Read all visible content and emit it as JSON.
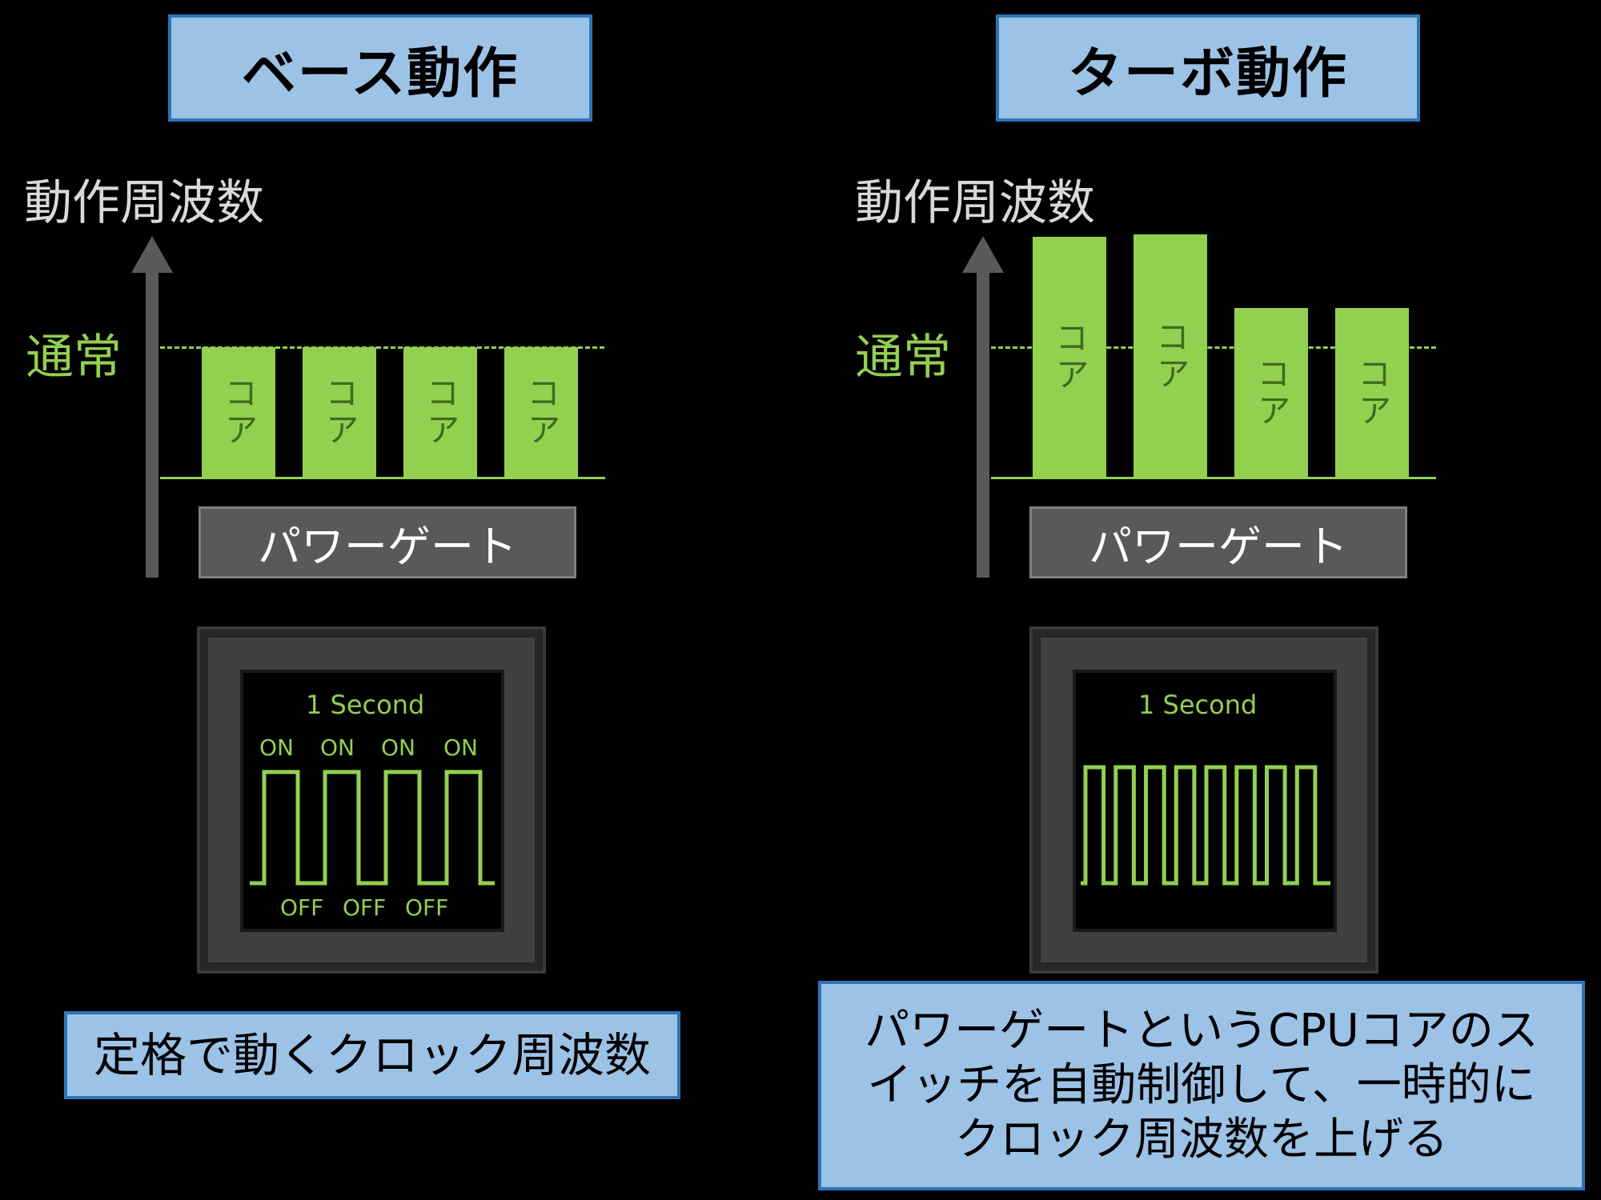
{
  "left": {
    "title": "ベース動作",
    "axis_label": "動作周波数",
    "normal_label": "通常",
    "cores": [
      {
        "label": "コア",
        "level": 1.0
      },
      {
        "label": "コア",
        "level": 1.0
      },
      {
        "label": "コア",
        "level": 1.0
      },
      {
        "label": "コア",
        "level": 1.0
      }
    ],
    "power_gate_label": "パワーゲート",
    "scope": {
      "title": "1 Second",
      "on_labels": [
        "ON",
        "ON",
        "ON",
        "ON"
      ],
      "off_labels": [
        "OFF",
        "OFF",
        "OFF"
      ],
      "pulses": 4
    },
    "caption": "定格で動くクロック周波数"
  },
  "right": {
    "title": "ターボ動作",
    "axis_label": "動作周波数",
    "normal_label": "通常",
    "cores": [
      {
        "label": "コア",
        "level": 1.85
      },
      {
        "label": "コア",
        "level": 1.87
      },
      {
        "label": "コア",
        "level": 1.3
      },
      {
        "label": "コア",
        "level": 1.3
      }
    ],
    "power_gate_label": "パワーゲート",
    "scope": {
      "title": "1 Second",
      "pulses": 8
    },
    "caption_lines": [
      "パワーゲートというCPUコアのス",
      "イッチを自動制御して、一時的に",
      "クロック周波数を上げる"
    ]
  },
  "colors": {
    "background": "#000000",
    "title_fill": "#9cc2e6",
    "title_border": "#2e75b6",
    "core_green": "#92d050",
    "axis_gray": "#595959"
  }
}
